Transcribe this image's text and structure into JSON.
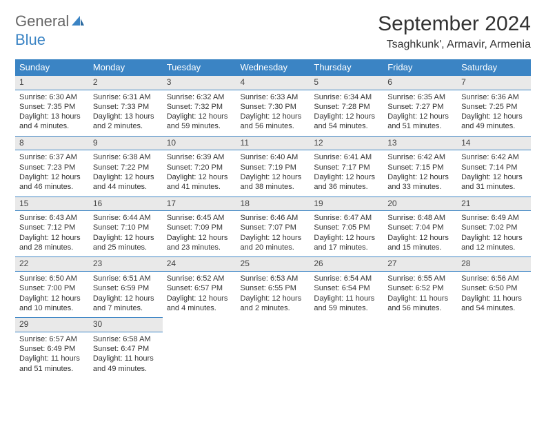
{
  "brand": {
    "part1": "General",
    "part2": "Blue"
  },
  "title": "September 2024",
  "location": "Tsaghkunk', Armavir, Armenia",
  "colors": {
    "header_bg": "#3b84c4",
    "header_text": "#ffffff",
    "daynum_bg": "#e9e9e9",
    "rule": "#3b84c4",
    "page_bg": "#ffffff",
    "text": "#333333"
  },
  "typography": {
    "title_fontsize": 30,
    "subtitle_fontsize": 16,
    "header_fontsize": 13,
    "daynum_fontsize": 12,
    "body_fontsize": 11
  },
  "weekdays": [
    "Sunday",
    "Monday",
    "Tuesday",
    "Wednesday",
    "Thursday",
    "Friday",
    "Saturday"
  ],
  "days": [
    {
      "n": 1,
      "sunrise": "6:30 AM",
      "sunset": "7:35 PM",
      "daylight": "13 hours and 4 minutes."
    },
    {
      "n": 2,
      "sunrise": "6:31 AM",
      "sunset": "7:33 PM",
      "daylight": "13 hours and 2 minutes."
    },
    {
      "n": 3,
      "sunrise": "6:32 AM",
      "sunset": "7:32 PM",
      "daylight": "12 hours and 59 minutes."
    },
    {
      "n": 4,
      "sunrise": "6:33 AM",
      "sunset": "7:30 PM",
      "daylight": "12 hours and 56 minutes."
    },
    {
      "n": 5,
      "sunrise": "6:34 AM",
      "sunset": "7:28 PM",
      "daylight": "12 hours and 54 minutes."
    },
    {
      "n": 6,
      "sunrise": "6:35 AM",
      "sunset": "7:27 PM",
      "daylight": "12 hours and 51 minutes."
    },
    {
      "n": 7,
      "sunrise": "6:36 AM",
      "sunset": "7:25 PM",
      "daylight": "12 hours and 49 minutes."
    },
    {
      "n": 8,
      "sunrise": "6:37 AM",
      "sunset": "7:23 PM",
      "daylight": "12 hours and 46 minutes."
    },
    {
      "n": 9,
      "sunrise": "6:38 AM",
      "sunset": "7:22 PM",
      "daylight": "12 hours and 44 minutes."
    },
    {
      "n": 10,
      "sunrise": "6:39 AM",
      "sunset": "7:20 PM",
      "daylight": "12 hours and 41 minutes."
    },
    {
      "n": 11,
      "sunrise": "6:40 AM",
      "sunset": "7:19 PM",
      "daylight": "12 hours and 38 minutes."
    },
    {
      "n": 12,
      "sunrise": "6:41 AM",
      "sunset": "7:17 PM",
      "daylight": "12 hours and 36 minutes."
    },
    {
      "n": 13,
      "sunrise": "6:42 AM",
      "sunset": "7:15 PM",
      "daylight": "12 hours and 33 minutes."
    },
    {
      "n": 14,
      "sunrise": "6:42 AM",
      "sunset": "7:14 PM",
      "daylight": "12 hours and 31 minutes."
    },
    {
      "n": 15,
      "sunrise": "6:43 AM",
      "sunset": "7:12 PM",
      "daylight": "12 hours and 28 minutes."
    },
    {
      "n": 16,
      "sunrise": "6:44 AM",
      "sunset": "7:10 PM",
      "daylight": "12 hours and 25 minutes."
    },
    {
      "n": 17,
      "sunrise": "6:45 AM",
      "sunset": "7:09 PM",
      "daylight": "12 hours and 23 minutes."
    },
    {
      "n": 18,
      "sunrise": "6:46 AM",
      "sunset": "7:07 PM",
      "daylight": "12 hours and 20 minutes."
    },
    {
      "n": 19,
      "sunrise": "6:47 AM",
      "sunset": "7:05 PM",
      "daylight": "12 hours and 17 minutes."
    },
    {
      "n": 20,
      "sunrise": "6:48 AM",
      "sunset": "7:04 PM",
      "daylight": "12 hours and 15 minutes."
    },
    {
      "n": 21,
      "sunrise": "6:49 AM",
      "sunset": "7:02 PM",
      "daylight": "12 hours and 12 minutes."
    },
    {
      "n": 22,
      "sunrise": "6:50 AM",
      "sunset": "7:00 PM",
      "daylight": "12 hours and 10 minutes."
    },
    {
      "n": 23,
      "sunrise": "6:51 AM",
      "sunset": "6:59 PM",
      "daylight": "12 hours and 7 minutes."
    },
    {
      "n": 24,
      "sunrise": "6:52 AM",
      "sunset": "6:57 PM",
      "daylight": "12 hours and 4 minutes."
    },
    {
      "n": 25,
      "sunrise": "6:53 AM",
      "sunset": "6:55 PM",
      "daylight": "12 hours and 2 minutes."
    },
    {
      "n": 26,
      "sunrise": "6:54 AM",
      "sunset": "6:54 PM",
      "daylight": "11 hours and 59 minutes."
    },
    {
      "n": 27,
      "sunrise": "6:55 AM",
      "sunset": "6:52 PM",
      "daylight": "11 hours and 56 minutes."
    },
    {
      "n": 28,
      "sunrise": "6:56 AM",
      "sunset": "6:50 PM",
      "daylight": "11 hours and 54 minutes."
    },
    {
      "n": 29,
      "sunrise": "6:57 AM",
      "sunset": "6:49 PM",
      "daylight": "11 hours and 51 minutes."
    },
    {
      "n": 30,
      "sunrise": "6:58 AM",
      "sunset": "6:47 PM",
      "daylight": "11 hours and 49 minutes."
    }
  ],
  "labels": {
    "sunrise_prefix": "Sunrise: ",
    "sunset_prefix": "Sunset: ",
    "daylight_prefix": "Daylight: "
  },
  "layout": {
    "start_weekday": 0,
    "total_cells": 35
  }
}
